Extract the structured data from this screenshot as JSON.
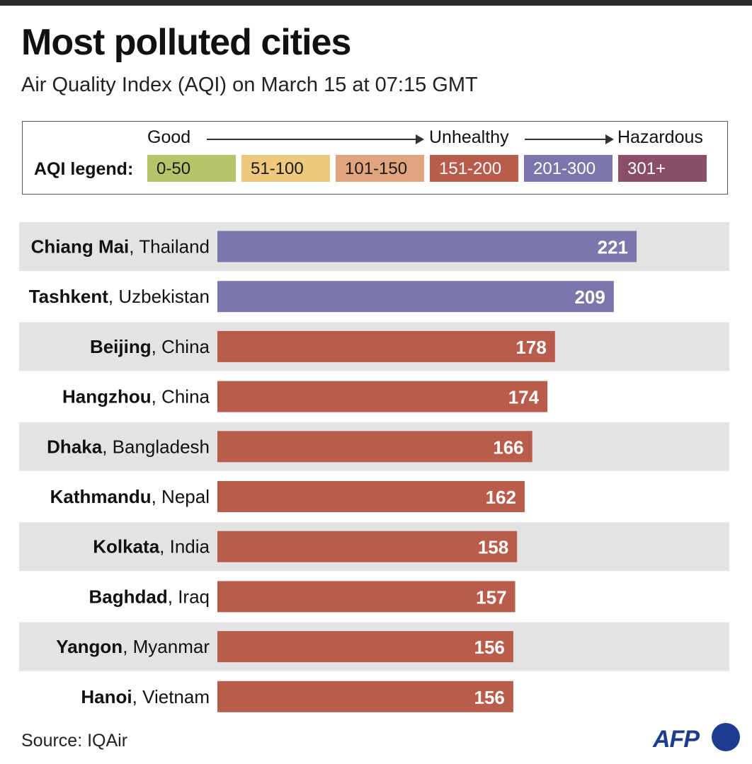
{
  "title": "Most polluted cities",
  "subtitle": "Air Quality Index (AQI) on March 15 at 07:15 GMT",
  "legend": {
    "label": "AQI legend:",
    "scale_left": "Good",
    "scale_mid": "Unhealthy",
    "scale_right": "Hazardous",
    "bands": [
      {
        "range": "0-50",
        "color": "#b6c46a",
        "text_color": "#1a1a1a"
      },
      {
        "range": "51-100",
        "color": "#eec97d",
        "text_color": "#1a1a1a"
      },
      {
        "range": "101-150",
        "color": "#e0a57c",
        "text_color": "#1a1a1a"
      },
      {
        "range": "151-200",
        "color": "#b95c4c",
        "text_color": "#ffffff"
      },
      {
        "range": "201-300",
        "color": "#7b76ab",
        "text_color": "#ffffff"
      },
      {
        "range": "301+",
        "color": "#8a4e69",
        "text_color": "#ffffff"
      }
    ]
  },
  "chart_data": {
    "type": "bar",
    "orientation": "horizontal",
    "categories": [
      {
        "city": "Chiang Mai",
        "country": "Thailand"
      },
      {
        "city": "Tashkent",
        "country": "Uzbekistan"
      },
      {
        "city": "Beijing",
        "country": "China"
      },
      {
        "city": "Hangzhou",
        "country": "China"
      },
      {
        "city": "Dhaka",
        "country": "Bangladesh"
      },
      {
        "city": "Kathmandu",
        "country": "Nepal"
      },
      {
        "city": "Kolkata",
        "country": "India"
      },
      {
        "city": "Baghdad",
        "country": "Iraq"
      },
      {
        "city": "Yangon",
        "country": "Myanmar"
      },
      {
        "city": "Hanoi",
        "country": "Vietnam"
      }
    ],
    "values": [
      221,
      209,
      178,
      174,
      166,
      162,
      158,
      157,
      156,
      156
    ],
    "bar_colors": [
      "#7b76ab",
      "#7b76ab",
      "#b95c4c",
      "#b95c4c",
      "#b95c4c",
      "#b95c4c",
      "#b95c4c",
      "#b95c4c",
      "#b95c4c",
      "#b95c4c"
    ],
    "xlim": [
      0,
      265
    ],
    "data_labels": true,
    "row_stripes": true
  },
  "footer": {
    "source": "Source: IQAir",
    "logo_text": "AFP"
  }
}
